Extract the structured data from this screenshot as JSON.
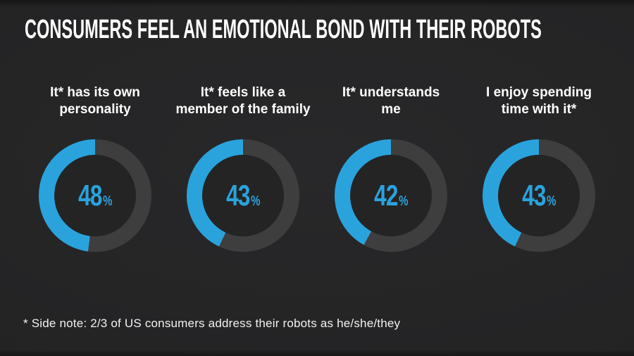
{
  "title": "CONSUMERS FEEL AN EMOTIONAL BOND WITH THEIR ROBOTS",
  "footnote": "* Side note: 2/3 of US consumers address their robots as he/she/they",
  "colors": {
    "background": "#242425",
    "accent_blue": "#2aa3dd",
    "ring_gray": "#3e3e3e",
    "text_white": "#ffffff"
  },
  "chart_data": {
    "type": "pie",
    "subtype": "donut-set",
    "unit": "%",
    "fill_direction": "counter-clockwise from top",
    "legend_position": "none",
    "items": [
      {
        "label": "It* has its own personality",
        "line1": "It* has its own",
        "line2": "personality",
        "value": 48
      },
      {
        "label": "It* feels like a member of the family",
        "line1": "It* feels like a",
        "line2": "member of the family",
        "value": 43
      },
      {
        "label": "It* understands me",
        "line1": "It* understands",
        "line2": "me",
        "value": 42
      },
      {
        "label": "I enjoy spending time with it*",
        "line1": "I enjoy spending",
        "line2": "time with it*",
        "value": 43
      }
    ]
  }
}
